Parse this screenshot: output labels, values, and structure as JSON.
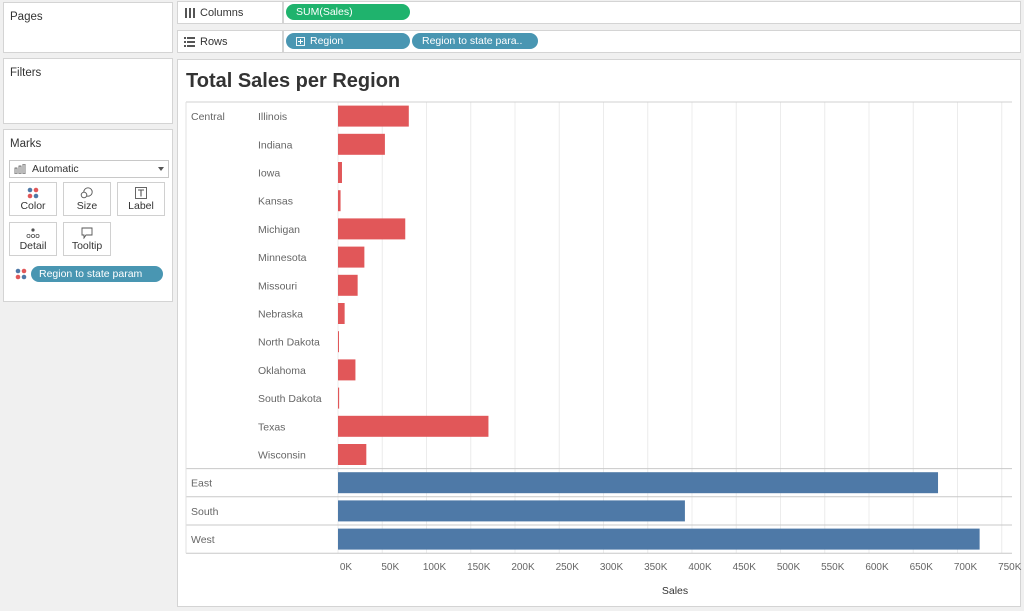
{
  "pages": {
    "title": "Pages"
  },
  "filters": {
    "title": "Filters"
  },
  "marks": {
    "title": "Marks",
    "mark_type": "Automatic",
    "buttons": [
      {
        "label": "Color",
        "icon": "color-dots-icon"
      },
      {
        "label": "Size",
        "icon": "size-icon"
      },
      {
        "label": "Label",
        "icon": "label-icon"
      },
      {
        "label": "Detail",
        "icon": "detail-icon"
      },
      {
        "label": "Tooltip",
        "icon": "tooltip-icon"
      }
    ],
    "color_field": "Region to state param"
  },
  "shelves": {
    "columns_label": "Columns",
    "columns_pill": "SUM(Sales)",
    "rows_label": "Rows",
    "rows_pills": [
      "Region",
      "Region to state para.."
    ]
  },
  "colors": {
    "central": "#e15759",
    "other": "#4e79a7",
    "pill_blue": "#4996b2",
    "pill_green": "#1fb36d"
  },
  "chart_data": {
    "type": "bar",
    "orientation": "horizontal",
    "title": "Total Sales per Region",
    "xlabel": "Sales",
    "xlim": [
      0,
      750000
    ],
    "xticks": [
      "0K",
      "50K",
      "100K",
      "150K",
      "200K",
      "250K",
      "300K",
      "350K",
      "400K",
      "450K",
      "500K",
      "550K",
      "600K",
      "650K",
      "700K",
      "750K"
    ],
    "groups": [
      {
        "region": "Central",
        "rows": [
          {
            "label": "Illinois",
            "value": 80000
          },
          {
            "label": "Indiana",
            "value": 53000
          },
          {
            "label": "Iowa",
            "value": 4500
          },
          {
            "label": "Kansas",
            "value": 2900
          },
          {
            "label": "Michigan",
            "value": 76000
          },
          {
            "label": "Minnesota",
            "value": 29800
          },
          {
            "label": "Missouri",
            "value": 22200
          },
          {
            "label": "Nebraska",
            "value": 7500
          },
          {
            "label": "North Dakota",
            "value": 900
          },
          {
            "label": "Oklahoma",
            "value": 19700
          },
          {
            "label": "South Dakota",
            "value": 1300
          },
          {
            "label": "Texas",
            "value": 170000
          },
          {
            "label": "Wisconsin",
            "value": 32000
          }
        ]
      },
      {
        "region": "East",
        "rows": [
          {
            "label": "",
            "value": 678000
          }
        ]
      },
      {
        "region": "South",
        "rows": [
          {
            "label": "",
            "value": 392000
          }
        ]
      },
      {
        "region": "West",
        "rows": [
          {
            "label": "",
            "value": 725000
          }
        ]
      }
    ]
  }
}
